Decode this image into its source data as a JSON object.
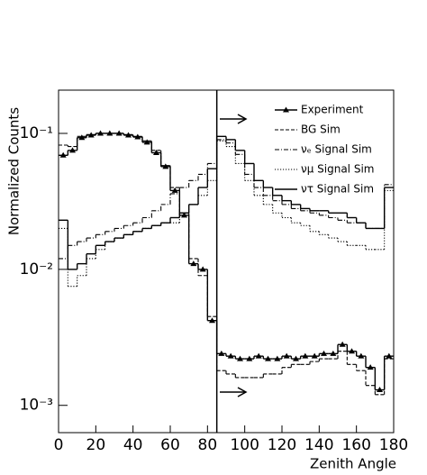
{
  "chart_data": {
    "type": "histogram",
    "x_label": "Zenith Angle",
    "y_label": "Normalized Counts",
    "log_y": true,
    "xlim": [
      0,
      180
    ],
    "ylim": [
      0.00063,
      0.208
    ],
    "xticks": [
      0,
      20,
      40,
      60,
      80,
      100,
      120,
      140,
      160,
      180
    ],
    "yticks": [
      {
        "value": 0.001,
        "label": "10⁻³"
      },
      {
        "value": 0.01,
        "label": "10⁻²"
      },
      {
        "value": 0.1,
        "label": "10⁻¹"
      }
    ],
    "vline": 85,
    "legend": "upper right",
    "bins": [
      0,
      5,
      10,
      15,
      20,
      25,
      30,
      35,
      40,
      45,
      50,
      55,
      60,
      65,
      70,
      75,
      80,
      85,
      90,
      95,
      100,
      105,
      110,
      115,
      120,
      125,
      130,
      135,
      140,
      145,
      150,
      155,
      160,
      165,
      170,
      175,
      180
    ],
    "series": [
      {
        "name": "Experiment",
        "color": "#000000",
        "style": "solid",
        "marker": "triangle",
        "values": [
          0.069,
          0.075,
          0.093,
          0.097,
          0.1,
          0.1,
          0.1,
          0.097,
          0.094,
          0.086,
          0.072,
          0.057,
          0.038,
          0.025,
          0.011,
          0.01,
          0.0042,
          0.0024,
          0.0023,
          0.0022,
          0.0022,
          0.0023,
          0.0022,
          0.0022,
          0.0023,
          0.0022,
          0.0023,
          0.0023,
          0.0024,
          0.0024,
          0.0028,
          0.0025,
          0.0023,
          0.0019,
          0.0013,
          0.0023
        ]
      },
      {
        "name": "BG Sim",
        "color": "#000000",
        "style": "dashed",
        "values": [
          0.082,
          0.08,
          0.095,
          0.098,
          0.1,
          0.1,
          0.1,
          0.098,
          0.095,
          0.088,
          0.075,
          0.058,
          0.04,
          0.026,
          0.012,
          0.009,
          0.0045,
          0.0018,
          0.0017,
          0.0016,
          0.0016,
          0.0016,
          0.0017,
          0.0017,
          0.0019,
          0.002,
          0.002,
          0.0021,
          0.0022,
          0.0022,
          0.0025,
          0.002,
          0.0018,
          0.0014,
          0.0012,
          0.0022
        ]
      },
      {
        "name": "νₑ Signal Sim",
        "color": "#000000",
        "style": "dashdot",
        "values": [
          0.012,
          0.015,
          0.016,
          0.017,
          0.018,
          0.019,
          0.02,
          0.021,
          0.022,
          0.024,
          0.027,
          0.03,
          0.036,
          0.04,
          0.045,
          0.05,
          0.06,
          0.09,
          0.085,
          0.07,
          0.05,
          0.04,
          0.035,
          0.032,
          0.03,
          0.028,
          0.027,
          0.026,
          0.025,
          0.024,
          0.023,
          0.022,
          0.022,
          0.02,
          0.02,
          0.042
        ]
      },
      {
        "name": "νμ Signal Sim",
        "color": "#000000",
        "style": "dotted",
        "values": [
          0.02,
          0.0075,
          0.009,
          0.012,
          0.014,
          0.016,
          0.017,
          0.018,
          0.019,
          0.02,
          0.021,
          0.022,
          0.022,
          0.025,
          0.03,
          0.035,
          0.045,
          0.088,
          0.08,
          0.06,
          0.045,
          0.035,
          0.03,
          0.026,
          0.024,
          0.022,
          0.021,
          0.019,
          0.018,
          0.017,
          0.016,
          0.015,
          0.015,
          0.014,
          0.014,
          0.038
        ]
      },
      {
        "name": "ντ Signal Sim",
        "color": "#000000",
        "style": "solid",
        "values": [
          0.023,
          0.01,
          0.011,
          0.013,
          0.015,
          0.016,
          0.017,
          0.018,
          0.019,
          0.02,
          0.021,
          0.022,
          0.024,
          0.026,
          0.03,
          0.04,
          0.055,
          0.095,
          0.09,
          0.075,
          0.06,
          0.045,
          0.04,
          0.035,
          0.032,
          0.03,
          0.028,
          0.027,
          0.027,
          0.026,
          0.026,
          0.024,
          0.022,
          0.02,
          0.02,
          0.04
        ]
      }
    ]
  }
}
